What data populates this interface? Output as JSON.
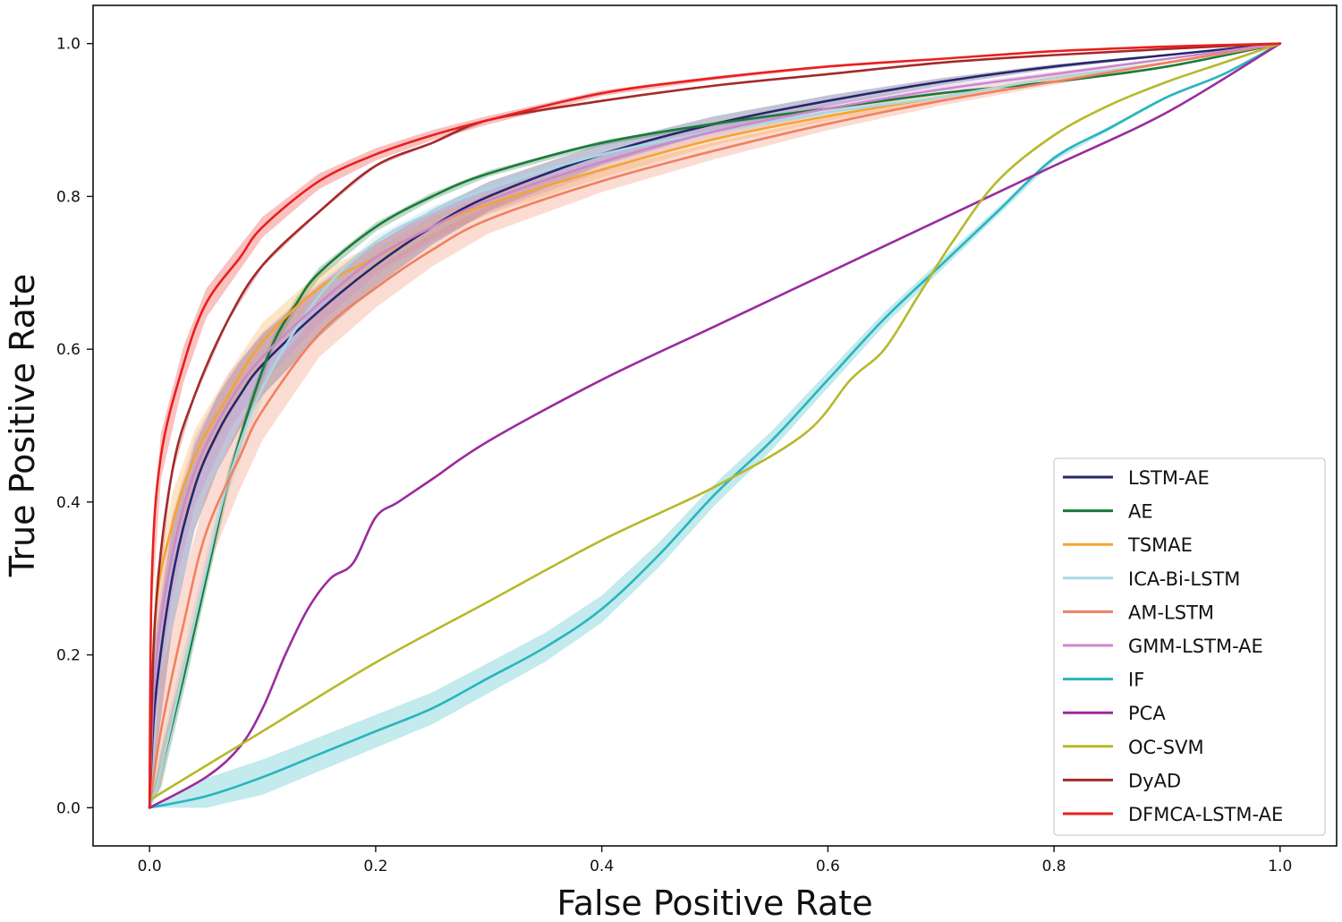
{
  "chart_data": {
    "type": "line",
    "title": "",
    "xlabel": "False Positive Rate",
    "ylabel": "True Positive Rate",
    "xlim": [
      -0.05,
      1.05
    ],
    "ylim": [
      -0.05,
      1.05
    ],
    "xticks": [
      0.0,
      0.2,
      0.4,
      0.6,
      0.8,
      1.0
    ],
    "yticks": [
      0.0,
      0.2,
      0.4,
      0.6,
      0.8,
      1.0
    ],
    "xtick_labels": [
      "0.0",
      "0.2",
      "0.4",
      "0.6",
      "0.8",
      "1.0"
    ],
    "ytick_labels": [
      "0.0",
      "0.2",
      "0.4",
      "0.6",
      "0.8",
      "1.0"
    ],
    "grid": false,
    "legend_position": "bottom-right",
    "series": [
      {
        "name": "LSTM-AE",
        "color": "#27266b",
        "band": 0.06,
        "points": [
          [
            0,
            0
          ],
          [
            0.005,
            0.14
          ],
          [
            0.02,
            0.3
          ],
          [
            0.04,
            0.42
          ],
          [
            0.06,
            0.49
          ],
          [
            0.08,
            0.54
          ],
          [
            0.1,
            0.58
          ],
          [
            0.15,
            0.65
          ],
          [
            0.2,
            0.71
          ],
          [
            0.25,
            0.76
          ],
          [
            0.3,
            0.8
          ],
          [
            0.4,
            0.855
          ],
          [
            0.5,
            0.895
          ],
          [
            0.6,
            0.925
          ],
          [
            0.7,
            0.95
          ],
          [
            0.8,
            0.97
          ],
          [
            0.9,
            0.985
          ],
          [
            1,
            1
          ]
        ]
      },
      {
        "name": "AE",
        "color": "#1a7a3a",
        "band": 0.015,
        "points": [
          [
            0,
            0
          ],
          [
            0.01,
            0.05
          ],
          [
            0.03,
            0.17
          ],
          [
            0.05,
            0.3
          ],
          [
            0.07,
            0.43
          ],
          [
            0.09,
            0.53
          ],
          [
            0.11,
            0.61
          ],
          [
            0.13,
            0.66
          ],
          [
            0.15,
            0.7
          ],
          [
            0.2,
            0.76
          ],
          [
            0.25,
            0.8
          ],
          [
            0.3,
            0.83
          ],
          [
            0.4,
            0.87
          ],
          [
            0.5,
            0.895
          ],
          [
            0.6,
            0.915
          ],
          [
            0.7,
            0.935
          ],
          [
            0.8,
            0.95
          ],
          [
            0.9,
            0.97
          ],
          [
            1,
            1
          ]
        ]
      },
      {
        "name": "TSMAE",
        "color": "#f5a431",
        "band": 0.04,
        "points": [
          [
            0,
            0
          ],
          [
            0.005,
            0.25
          ],
          [
            0.02,
            0.37
          ],
          [
            0.04,
            0.46
          ],
          [
            0.07,
            0.54
          ],
          [
            0.1,
            0.61
          ],
          [
            0.15,
            0.68
          ],
          [
            0.2,
            0.72
          ],
          [
            0.25,
            0.76
          ],
          [
            0.3,
            0.79
          ],
          [
            0.4,
            0.835
          ],
          [
            0.5,
            0.875
          ],
          [
            0.6,
            0.905
          ],
          [
            0.7,
            0.93
          ],
          [
            0.8,
            0.955
          ],
          [
            0.9,
            0.975
          ],
          [
            1,
            1
          ]
        ]
      },
      {
        "name": "ICA-Bi-LSTM",
        "color": "#a8d8e2",
        "band": 0.02,
        "points": [
          [
            0,
            0
          ],
          [
            0.01,
            0.05
          ],
          [
            0.03,
            0.18
          ],
          [
            0.05,
            0.31
          ],
          [
            0.07,
            0.43
          ],
          [
            0.1,
            0.55
          ],
          [
            0.15,
            0.67
          ],
          [
            0.2,
            0.74
          ],
          [
            0.25,
            0.78
          ],
          [
            0.3,
            0.81
          ],
          [
            0.4,
            0.855
          ],
          [
            0.5,
            0.885
          ],
          [
            0.6,
            0.91
          ],
          [
            0.7,
            0.93
          ],
          [
            0.8,
            0.955
          ],
          [
            0.9,
            0.975
          ],
          [
            1,
            1
          ]
        ]
      },
      {
        "name": "AM-LSTM",
        "color": "#f08060",
        "band": 0.05,
        "points": [
          [
            0,
            0
          ],
          [
            0.01,
            0.1
          ],
          [
            0.03,
            0.24
          ],
          [
            0.05,
            0.36
          ],
          [
            0.08,
            0.46
          ],
          [
            0.1,
            0.52
          ],
          [
            0.15,
            0.62
          ],
          [
            0.2,
            0.68
          ],
          [
            0.25,
            0.73
          ],
          [
            0.3,
            0.77
          ],
          [
            0.4,
            0.82
          ],
          [
            0.5,
            0.86
          ],
          [
            0.6,
            0.895
          ],
          [
            0.7,
            0.925
          ],
          [
            0.8,
            0.95
          ],
          [
            0.9,
            0.975
          ],
          [
            1,
            1
          ]
        ]
      },
      {
        "name": "GMM-LSTM-AE",
        "color": "#cc88cc",
        "band": 0.05,
        "points": [
          [
            0,
            0
          ],
          [
            0.005,
            0.18
          ],
          [
            0.02,
            0.33
          ],
          [
            0.04,
            0.44
          ],
          [
            0.07,
            0.53
          ],
          [
            0.1,
            0.59
          ],
          [
            0.15,
            0.66
          ],
          [
            0.2,
            0.72
          ],
          [
            0.25,
            0.76
          ],
          [
            0.3,
            0.795
          ],
          [
            0.4,
            0.845
          ],
          [
            0.5,
            0.885
          ],
          [
            0.6,
            0.915
          ],
          [
            0.7,
            0.94
          ],
          [
            0.8,
            0.96
          ],
          [
            0.9,
            0.98
          ],
          [
            1,
            1
          ]
        ]
      },
      {
        "name": "IF",
        "color": "#28b5be",
        "band": 0.015,
        "points": [
          [
            0,
            0
          ],
          [
            0.05,
            0.015
          ],
          [
            0.1,
            0.04
          ],
          [
            0.15,
            0.07
          ],
          [
            0.2,
            0.1
          ],
          [
            0.25,
            0.13
          ],
          [
            0.3,
            0.17
          ],
          [
            0.35,
            0.21
          ],
          [
            0.4,
            0.26
          ],
          [
            0.45,
            0.33
          ],
          [
            0.5,
            0.41
          ],
          [
            0.55,
            0.48
          ],
          [
            0.6,
            0.56
          ],
          [
            0.65,
            0.64
          ],
          [
            0.7,
            0.71
          ],
          [
            0.75,
            0.78
          ],
          [
            0.8,
            0.85
          ],
          [
            0.85,
            0.89
          ],
          [
            0.9,
            0.93
          ],
          [
            0.95,
            0.96
          ],
          [
            1,
            1
          ]
        ]
      },
      {
        "name": "PCA",
        "color": "#9a2b9e",
        "band": 0,
        "points": [
          [
            0,
            0
          ],
          [
            0.05,
            0.04
          ],
          [
            0.08,
            0.08
          ],
          [
            0.1,
            0.13
          ],
          [
            0.12,
            0.2
          ],
          [
            0.14,
            0.26
          ],
          [
            0.16,
            0.3
          ],
          [
            0.18,
            0.32
          ],
          [
            0.2,
            0.38
          ],
          [
            0.22,
            0.4
          ],
          [
            0.25,
            0.43
          ],
          [
            0.3,
            0.48
          ],
          [
            0.4,
            0.56
          ],
          [
            0.5,
            0.63
          ],
          [
            0.6,
            0.7
          ],
          [
            0.7,
            0.77
          ],
          [
            0.8,
            0.84
          ],
          [
            0.9,
            0.91
          ],
          [
            1,
            1
          ]
        ]
      },
      {
        "name": "OC-SVM",
        "color": "#b7b82b",
        "band": 0,
        "points": [
          [
            0,
            0.01
          ],
          [
            0.1,
            0.1
          ],
          [
            0.2,
            0.19
          ],
          [
            0.3,
            0.27
          ],
          [
            0.4,
            0.35
          ],
          [
            0.5,
            0.42
          ],
          [
            0.58,
            0.49
          ],
          [
            0.62,
            0.56
          ],
          [
            0.65,
            0.6
          ],
          [
            0.68,
            0.67
          ],
          [
            0.71,
            0.74
          ],
          [
            0.75,
            0.82
          ],
          [
            0.8,
            0.88
          ],
          [
            0.85,
            0.92
          ],
          [
            0.9,
            0.95
          ],
          [
            0.95,
            0.975
          ],
          [
            1,
            1
          ]
        ]
      },
      {
        "name": "DyAD",
        "color": "#a42a2a",
        "band": 0.005,
        "points": [
          [
            0,
            0
          ],
          [
            0.005,
            0.25
          ],
          [
            0.02,
            0.44
          ],
          [
            0.04,
            0.54
          ],
          [
            0.07,
            0.64
          ],
          [
            0.1,
            0.71
          ],
          [
            0.15,
            0.78
          ],
          [
            0.2,
            0.84
          ],
          [
            0.25,
            0.87
          ],
          [
            0.3,
            0.9
          ],
          [
            0.4,
            0.925
          ],
          [
            0.5,
            0.945
          ],
          [
            0.6,
            0.96
          ],
          [
            0.7,
            0.975
          ],
          [
            0.8,
            0.985
          ],
          [
            0.9,
            0.993
          ],
          [
            1,
            1
          ]
        ]
      },
      {
        "name": "DFMCA-LSTM-AE",
        "color": "#e8201e",
        "band": 0.035,
        "points": [
          [
            0,
            0
          ],
          [
            0.002,
            0.3
          ],
          [
            0.01,
            0.46
          ],
          [
            0.03,
            0.58
          ],
          [
            0.05,
            0.66
          ],
          [
            0.08,
            0.72
          ],
          [
            0.1,
            0.76
          ],
          [
            0.15,
            0.82
          ],
          [
            0.2,
            0.855
          ],
          [
            0.25,
            0.88
          ],
          [
            0.3,
            0.9
          ],
          [
            0.4,
            0.935
          ],
          [
            0.5,
            0.955
          ],
          [
            0.6,
            0.97
          ],
          [
            0.7,
            0.98
          ],
          [
            0.8,
            0.99
          ],
          [
            0.9,
            0.996
          ],
          [
            1,
            1
          ]
        ]
      }
    ]
  }
}
